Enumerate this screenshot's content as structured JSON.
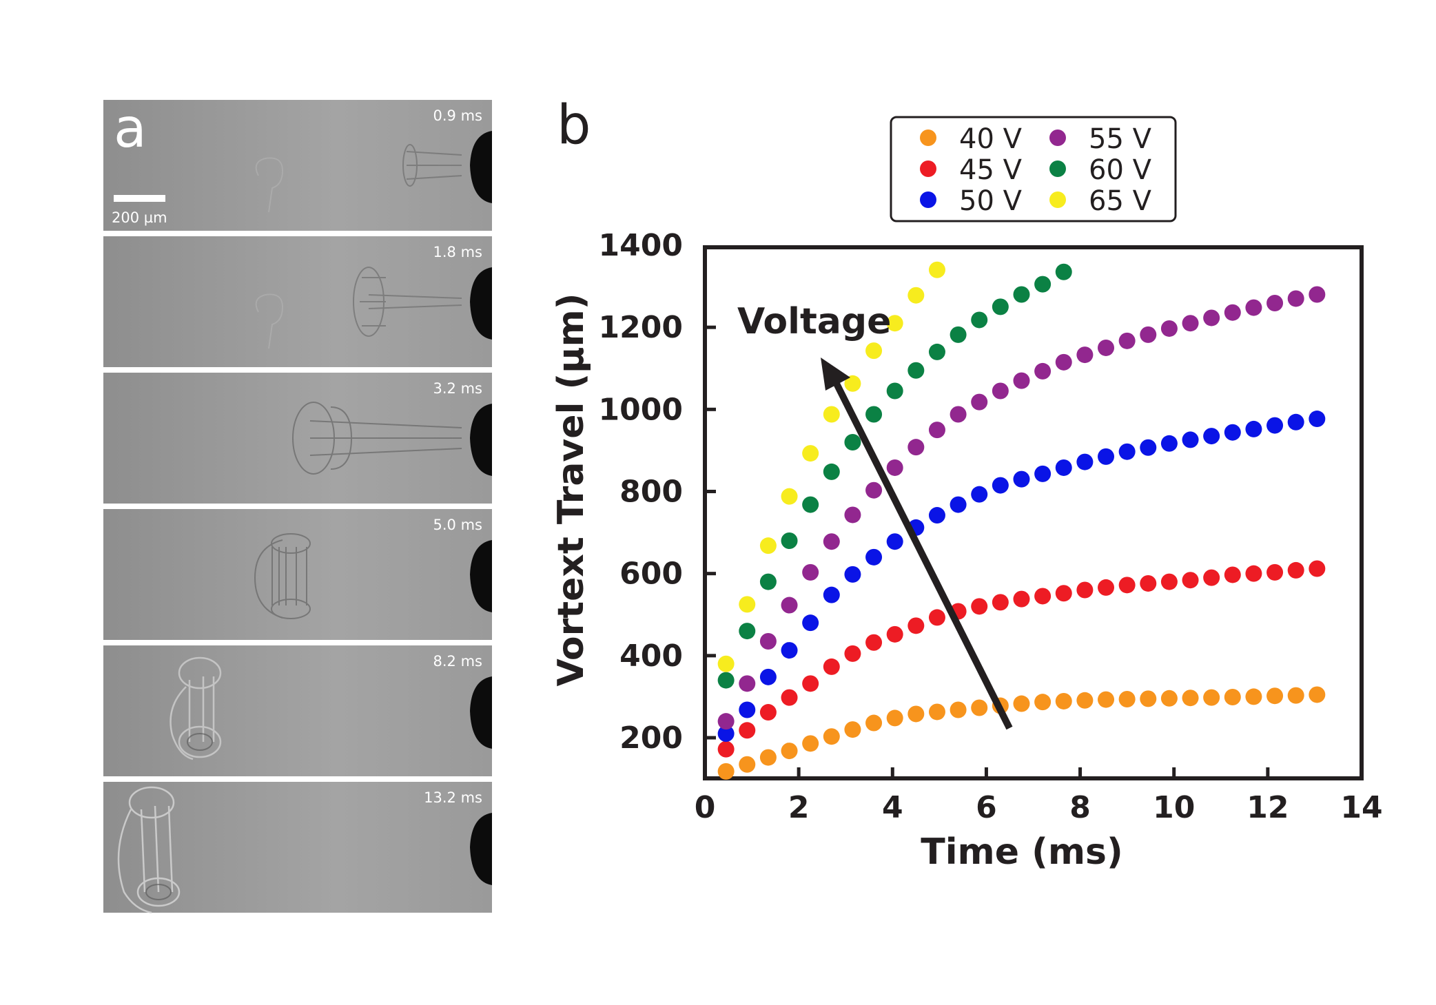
{
  "panel_a": {
    "label": "a",
    "scale_bar_label": "200 µm",
    "frames": [
      {
        "time": "0.9 ms"
      },
      {
        "time": "1.8 ms"
      },
      {
        "time": "3.2 ms"
      },
      {
        "time": "5.0 ms"
      },
      {
        "time": "8.2 ms"
      },
      {
        "time": "13.2 ms"
      }
    ]
  },
  "panel_b": {
    "label": "b",
    "annotation": "Voltage"
  },
  "chart_data": {
    "type": "scatter",
    "title": "",
    "xlabel": "Time (ms)",
    "ylabel": "Vortext Travel  (µm)",
    "xlim": [
      0,
      14
    ],
    "ylim": [
      100,
      1400
    ],
    "xticks": [
      0,
      2,
      4,
      6,
      8,
      10,
      12,
      14
    ],
    "yticks": [
      200,
      400,
      600,
      800,
      1000,
      1200,
      1400
    ],
    "legend": "top",
    "series": [
      {
        "name": "40 V",
        "color": "#f7941d",
        "x": [
          0.45,
          0.9,
          1.35,
          1.8,
          2.25,
          2.7,
          3.15,
          3.6,
          4.05,
          4.5,
          4.95,
          5.4,
          5.85,
          6.3,
          6.75,
          7.2,
          7.65,
          8.1,
          8.55,
          9.0,
          9.45,
          9.9,
          10.35,
          10.8,
          11.25,
          11.7,
          12.15,
          12.6,
          13.05
        ],
        "y": [
          118,
          135,
          152,
          168,
          186,
          203,
          220,
          236,
          248,
          258,
          263,
          268,
          273,
          278,
          283,
          287,
          289,
          291,
          293,
          294,
          295,
          296,
          297,
          298,
          299,
          300,
          302,
          303,
          305
        ]
      },
      {
        "name": "45 V",
        "color": "#ed1c24",
        "x": [
          0.45,
          0.9,
          1.35,
          1.8,
          2.25,
          2.7,
          3.15,
          3.6,
          4.05,
          4.5,
          4.95,
          5.4,
          5.85,
          6.3,
          6.75,
          7.2,
          7.65,
          8.1,
          8.55,
          9.0,
          9.45,
          9.9,
          10.35,
          10.8,
          11.25,
          11.7,
          12.15,
          12.6,
          13.05
        ],
        "y": [
          172,
          218,
          262,
          298,
          332,
          373,
          405,
          432,
          452,
          473,
          493,
          508,
          520,
          530,
          538,
          545,
          552,
          560,
          566,
          572,
          576,
          580,
          584,
          590,
          597,
          600,
          603,
          608,
          612
        ]
      },
      {
        "name": "50 V",
        "color": "#0a14e6",
        "x": [
          0.45,
          0.9,
          1.35,
          1.8,
          2.25,
          2.7,
          3.15,
          3.6,
          4.05,
          4.5,
          4.95,
          5.4,
          5.85,
          6.3,
          6.75,
          7.2,
          7.65,
          8.1,
          8.55,
          9.0,
          9.45,
          9.9,
          10.35,
          10.8,
          11.25,
          11.7,
          12.15,
          12.6,
          13.05
        ],
        "y": [
          210,
          268,
          348,
          413,
          480,
          548,
          598,
          640,
          678,
          712,
          742,
          768,
          793,
          815,
          830,
          843,
          858,
          872,
          885,
          897,
          907,
          917,
          926,
          935,
          944,
          952,
          961,
          969,
          977
        ]
      },
      {
        "name": "55 V",
        "color": "#92278f",
        "x": [
          0.45,
          0.9,
          1.35,
          1.8,
          2.25,
          2.7,
          3.15,
          3.6,
          4.05,
          4.5,
          4.95,
          5.4,
          5.85,
          6.3,
          6.75,
          7.2,
          7.65,
          8.1,
          8.55,
          9.0,
          9.45,
          9.9,
          10.35,
          10.8,
          11.25,
          11.7,
          12.15,
          12.6,
          13.05
        ],
        "y": [
          240,
          332,
          435,
          523,
          603,
          678,
          743,
          803,
          858,
          908,
          950,
          988,
          1018,
          1045,
          1070,
          1093,
          1115,
          1133,
          1150,
          1167,
          1182,
          1197,
          1210,
          1223,
          1236,
          1248,
          1259,
          1270,
          1280
        ]
      },
      {
        "name": "60 V",
        "color": "#0b8144",
        "x": [
          0.45,
          0.9,
          1.35,
          1.8,
          2.25,
          2.7,
          3.15,
          3.6,
          4.05,
          4.5,
          4.95,
          5.4,
          5.85,
          6.3,
          6.75,
          7.2,
          7.65
        ],
        "y": [
          340,
          460,
          580,
          680,
          768,
          848,
          920,
          988,
          1045,
          1095,
          1140,
          1182,
          1218,
          1250,
          1280,
          1305,
          1335
        ]
      },
      {
        "name": "65 V",
        "color": "#f7ec1e",
        "x": [
          0.45,
          0.9,
          1.35,
          1.8,
          2.25,
          2.7,
          3.15,
          3.6,
          4.05,
          4.5,
          4.95
        ],
        "y": [
          380,
          525,
          668,
          788,
          893,
          988,
          1063,
          1143,
          1210,
          1278,
          1340
        ]
      }
    ]
  }
}
